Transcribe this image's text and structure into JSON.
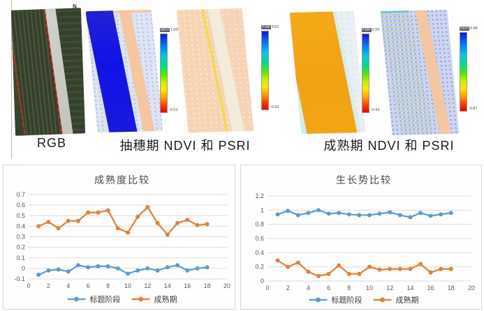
{
  "figure": {
    "north_label": "N",
    "captions": {
      "rgb": "RGB",
      "heading_stage": "抽穗期 NDVI 和 PSRI",
      "maturity_stage": "成熟期 NDVI 和 PSRI"
    }
  },
  "colorbars": [
    {
      "label": "NDVI",
      "max": "1.00",
      "min": "-0.51"
    },
    {
      "label": "PSRI",
      "max": "3.61",
      "min": "-0.62"
    },
    {
      "label": "PSRI",
      "max": "2.50",
      "min": "-0.93"
    },
    {
      "label": "NDVI",
      "max": "0.98",
      "min": "-0.87"
    }
  ],
  "colors": {
    "series_heading": "#5B9BD5",
    "series_maturity": "#ED7D31",
    "gridline": "#dcdcdc",
    "axis_text": "#595959",
    "title_text": "#4a4a4a"
  },
  "chart_data": [
    {
      "type": "line",
      "title": "成熟度比较",
      "x": [
        1,
        2,
        3,
        4,
        5,
        6,
        7,
        8,
        9,
        10,
        11,
        12,
        13,
        14,
        15,
        16,
        17,
        18
      ],
      "series": [
        {
          "name": "标题阶段",
          "color": "#5B9BD5",
          "values": [
            -0.06,
            -0.02,
            -0.01,
            -0.03,
            0.03,
            0.01,
            0.02,
            0.02,
            0.0,
            -0.05,
            -0.02,
            0.0,
            -0.02,
            0.01,
            0.03,
            -0.02,
            0.0,
            0.01
          ]
        },
        {
          "name": "成熟期",
          "color": "#ED7D31",
          "values": [
            0.4,
            0.44,
            0.38,
            0.45,
            0.45,
            0.53,
            0.53,
            0.55,
            0.38,
            0.34,
            0.49,
            0.58,
            0.43,
            0.32,
            0.43,
            0.46,
            0.41,
            0.42
          ]
        }
      ],
      "xlim": [
        0,
        20
      ],
      "ylim": [
        -0.1,
        0.7
      ],
      "xtick_step": 2,
      "ytick_step": 0.1,
      "grid": true,
      "legend_position": "bottom"
    },
    {
      "type": "line",
      "title": "生长势比较",
      "x": [
        1,
        2,
        3,
        4,
        5,
        6,
        7,
        8,
        9,
        10,
        11,
        12,
        13,
        14,
        15,
        16,
        17,
        18
      ],
      "series": [
        {
          "name": "标题阶段",
          "color": "#5B9BD5",
          "values": [
            0.94,
            0.99,
            0.93,
            0.96,
            1.0,
            0.95,
            0.96,
            0.94,
            0.93,
            0.93,
            0.95,
            0.97,
            0.93,
            0.9,
            0.96,
            0.92,
            0.94,
            0.96
          ]
        },
        {
          "name": "成熟期",
          "color": "#ED7D31",
          "values": [
            0.29,
            0.2,
            0.26,
            0.13,
            0.07,
            0.1,
            0.22,
            0.1,
            0.1,
            0.2,
            0.16,
            0.17,
            0.17,
            0.17,
            0.24,
            0.12,
            0.17,
            0.17
          ]
        }
      ],
      "xlim": [
        0,
        20
      ],
      "ylim": [
        0,
        1.2
      ],
      "xtick_step": 2,
      "ytick_step": 0.2,
      "grid": true,
      "legend_position": "bottom"
    }
  ]
}
